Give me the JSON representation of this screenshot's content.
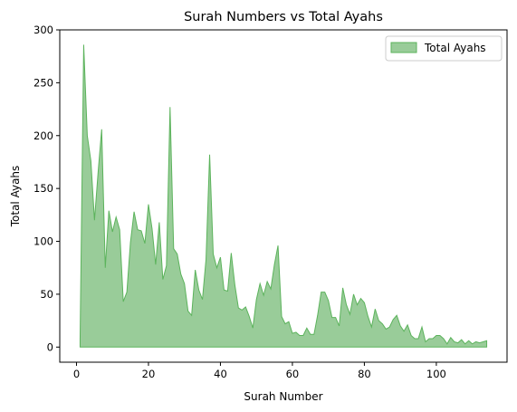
{
  "chart_data": {
    "type": "area",
    "title": "Surah Numbers vs Total Ayahs",
    "xlabel": "Surah Number",
    "ylabel": "Total Ayahs",
    "xlim": [
      -4.65,
      119.65
    ],
    "ylim": [
      -14.3,
      300
    ],
    "xticks": [
      0,
      20,
      40,
      60,
      80,
      100
    ],
    "yticks": [
      0,
      50,
      100,
      150,
      200,
      250,
      300
    ],
    "grid": false,
    "legend_position": "top-right",
    "colors": {
      "fill": "#99cc99",
      "edge": "#5cb35c"
    },
    "series": [
      {
        "name": "Total Ayahs",
        "x": [
          1,
          2,
          3,
          4,
          5,
          6,
          7,
          8,
          9,
          10,
          11,
          12,
          13,
          14,
          15,
          16,
          17,
          18,
          19,
          20,
          21,
          22,
          23,
          24,
          25,
          26,
          27,
          28,
          29,
          30,
          31,
          32,
          33,
          34,
          35,
          36,
          37,
          38,
          39,
          40,
          41,
          42,
          43,
          44,
          45,
          46,
          47,
          48,
          49,
          50,
          51,
          52,
          53,
          54,
          55,
          56,
          57,
          58,
          59,
          60,
          61,
          62,
          63,
          64,
          65,
          66,
          67,
          68,
          69,
          70,
          71,
          72,
          73,
          74,
          75,
          76,
          77,
          78,
          79,
          80,
          81,
          82,
          83,
          84,
          85,
          86,
          87,
          88,
          89,
          90,
          91,
          92,
          93,
          94,
          95,
          96,
          97,
          98,
          99,
          100,
          101,
          102,
          103,
          104,
          105,
          106,
          107,
          108,
          109,
          110,
          111,
          112,
          113,
          114
        ],
        "values": [
          7,
          286,
          200,
          176,
          120,
          165,
          206,
          75,
          129,
          109,
          123,
          111,
          43,
          52,
          99,
          128,
          111,
          110,
          98,
          135,
          112,
          78,
          118,
          64,
          77,
          227,
          93,
          88,
          69,
          60,
          34,
          30,
          73,
          54,
          45,
          83,
          182,
          88,
          75,
          85,
          54,
          53,
          89,
          59,
          37,
          35,
          38,
          29,
          18,
          45,
          60,
          49,
          62,
          55,
          78,
          96,
          29,
          22,
          24,
          13,
          14,
          11,
          11,
          18,
          12,
          12,
          30,
          52,
          52,
          44,
          28,
          28,
          20,
          56,
          40,
          31,
          50,
          40,
          46,
          42,
          29,
          19,
          36,
          25,
          22,
          17,
          19,
          26,
          30,
          20,
          15,
          21,
          11,
          8,
          8,
          19,
          5,
          8,
          8,
          11,
          11,
          8,
          3,
          9,
          5,
          4,
          7,
          3,
          6,
          3,
          5,
          4,
          5,
          6
        ]
      }
    ]
  }
}
